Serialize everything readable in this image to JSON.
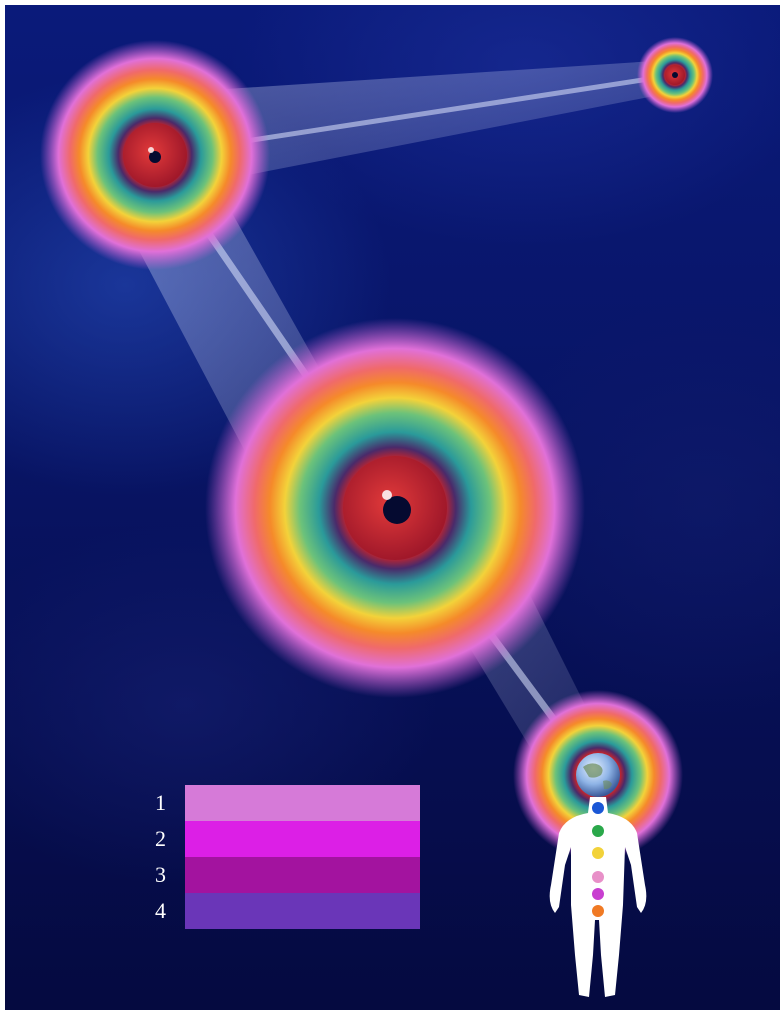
{
  "image": {
    "subject": "nested-spheres-with-light-beams",
    "colors": {
      "background": "#081464",
      "beam": "#dfe6ff",
      "core_red": "#c4242c",
      "pupil": "#050a30"
    }
  },
  "legend": {
    "items": [
      {
        "number": "1",
        "color": "#d67ad8"
      },
      {
        "number": "2",
        "color": "#dc1fe6"
      },
      {
        "number": "3",
        "color": "#a3139f"
      },
      {
        "number": "4",
        "color": "#6a36b8"
      }
    ]
  },
  "figure": {
    "chakra_colors": [
      "#1a57d6",
      "#2aa84a",
      "#f2d23a",
      "#e890c8",
      "#c83fd0",
      "#f07a24"
    ]
  }
}
